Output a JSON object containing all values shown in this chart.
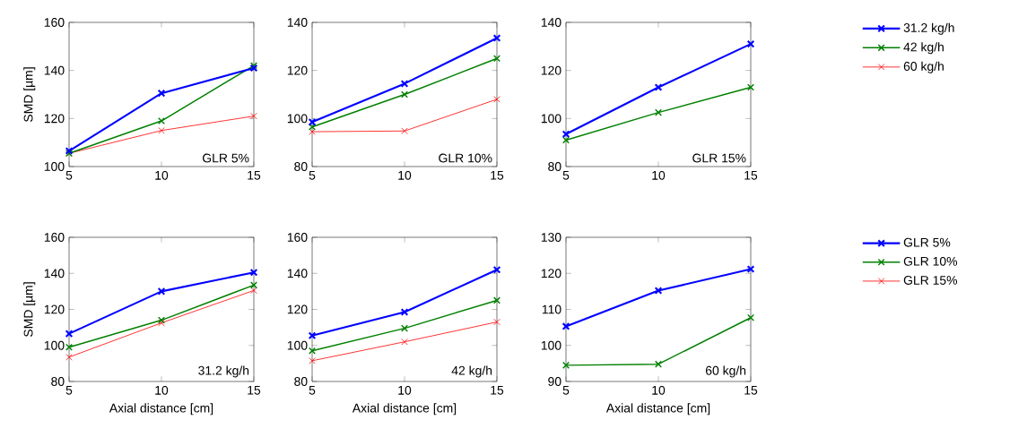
{
  "chart_data": [
    {
      "type": "line",
      "ylabel": "SMD [µm]",
      "x": [
        5,
        10,
        15
      ],
      "xlim": [
        5,
        15
      ],
      "xticks": [
        5,
        10,
        15
      ],
      "ylim": [
        100,
        160
      ],
      "yticks": [
        100,
        120,
        140,
        160
      ],
      "marker": "cross",
      "line_style": "solid",
      "annotations": [
        "GLR 5%"
      ],
      "series": [
        {
          "color": "#0000ff",
          "values": [
            106.5,
            130.5,
            141
          ]
        },
        {
          "color": "#008000",
          "values": [
            105.5,
            119,
            142
          ]
        },
        {
          "color": "#ff0000",
          "values": [
            105.5,
            115,
            121
          ]
        }
      ]
    },
    {
      "type": "line",
      "x": [
        5,
        10,
        15
      ],
      "xlim": [
        5,
        15
      ],
      "xticks": [
        5,
        10,
        15
      ],
      "ylim": [
        80,
        140
      ],
      "yticks": [
        80,
        100,
        120,
        140
      ],
      "marker": "cross",
      "line_style": "solid",
      "annotations": [
        "GLR 10%"
      ],
      "series": [
        {
          "color": "#0000ff",
          "values": [
            98.5,
            114.5,
            133.5
          ]
        },
        {
          "color": "#008000",
          "values": [
            96.5,
            110,
            125
          ]
        },
        {
          "color": "#ff0000",
          "values": [
            94.5,
            94.8,
            108
          ]
        }
      ]
    },
    {
      "type": "line",
      "x": [
        5,
        10,
        15
      ],
      "xlim": [
        5,
        15
      ],
      "xticks": [
        5,
        10,
        15
      ],
      "ylim": [
        80,
        140
      ],
      "yticks": [
        80,
        100,
        120,
        140
      ],
      "marker": "cross",
      "line_style": "solid",
      "legend": "right",
      "annotations": [
        "GLR 15%"
      ],
      "series": [
        {
          "name": "31.2 kg/h",
          "color": "#0000ff",
          "values": [
            93.5,
            113,
            131
          ]
        },
        {
          "name": "42 kg/h",
          "color": "#008000",
          "values": [
            91,
            102.5,
            113
          ]
        },
        {
          "name": "60 kg/h",
          "color": "#ff0000",
          "values": [
            null,
            null,
            null
          ]
        }
      ]
    },
    {
      "type": "line",
      "ylabel": "SMD [µm]",
      "xlabel": "Axial distance [cm]",
      "x": [
        5,
        10,
        15
      ],
      "xlim": [
        5,
        15
      ],
      "xticks": [
        5,
        10,
        15
      ],
      "ylim": [
        80,
        160
      ],
      "yticks": [
        80,
        100,
        120,
        140,
        160
      ],
      "marker": "cross",
      "line_style": "solid",
      "annotations": [
        "31.2 kg/h"
      ],
      "series": [
        {
          "color": "#0000ff",
          "values": [
            106.5,
            130,
            140.5
          ]
        },
        {
          "color": "#008000",
          "values": [
            99,
            114,
            133.5
          ]
        },
        {
          "color": "#ff0000",
          "values": [
            93.5,
            112.5,
            130.5
          ]
        }
      ]
    },
    {
      "type": "line",
      "xlabel": "Axial distance [cm]",
      "x": [
        5,
        10,
        15
      ],
      "xlim": [
        5,
        15
      ],
      "xticks": [
        5,
        10,
        15
      ],
      "ylim": [
        80,
        160
      ],
      "yticks": [
        80,
        100,
        120,
        140,
        160
      ],
      "marker": "cross",
      "line_style": "solid",
      "annotations": [
        "42 kg/h"
      ],
      "series": [
        {
          "color": "#0000ff",
          "values": [
            105.5,
            118.5,
            142
          ]
        },
        {
          "color": "#008000",
          "values": [
            97,
            109.5,
            125
          ]
        },
        {
          "color": "#ff0000",
          "values": [
            91.5,
            102,
            113
          ]
        }
      ]
    },
    {
      "type": "line",
      "xlabel": "Axial distance [cm]",
      "x": [
        5,
        10,
        15
      ],
      "xlim": [
        5,
        15
      ],
      "xticks": [
        5,
        10,
        15
      ],
      "ylim": [
        90,
        130
      ],
      "yticks": [
        90,
        100,
        110,
        120,
        130
      ],
      "marker": "cross",
      "line_style": "solid",
      "legend": "right",
      "annotations": [
        "60 kg/h"
      ],
      "series": [
        {
          "name": "GLR 5%",
          "color": "#0000ff",
          "values": [
            105.3,
            115.2,
            121.2
          ]
        },
        {
          "name": "GLR 10%",
          "color": "#008000",
          "values": [
            94.5,
            94.8,
            107.7
          ]
        },
        {
          "name": "GLR 15%",
          "color": "#ff0000",
          "values": [
            null,
            null,
            null
          ]
        }
      ]
    }
  ]
}
